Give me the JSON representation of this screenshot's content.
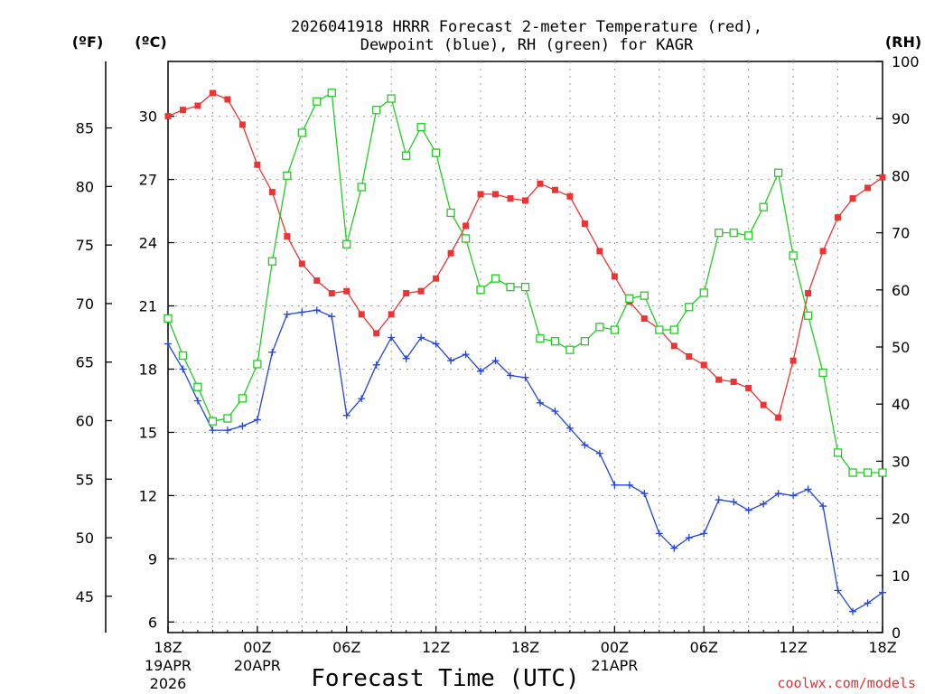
{
  "chart_data": {
    "type": "line",
    "title_line1": "2026041918 HRRR Forecast 2-meter Temperature (red),",
    "title_line2": "Dewpoint (blue), RH (green) for KAGR",
    "xlabel": "Forecast Time (UTC)",
    "watermark": "coolwx.com/models",
    "unit_labels": {
      "fahrenheit": "(ºF)",
      "celsius": "(ºC)",
      "rh": "(RH)"
    },
    "hours": [
      0,
      1,
      2,
      3,
      4,
      5,
      6,
      7,
      8,
      9,
      10,
      11,
      12,
      13,
      14,
      15,
      16,
      17,
      18,
      19,
      20,
      21,
      22,
      23,
      24,
      25,
      26,
      27,
      28,
      29,
      30,
      31,
      32,
      33,
      34,
      35,
      36,
      37,
      38,
      39,
      40,
      41,
      42,
      43,
      44,
      45,
      46,
      47,
      48
    ],
    "x_ticks": [
      {
        "hour": 0,
        "label": "18Z",
        "date1": "19APR",
        "date2": "2026"
      },
      {
        "hour": 6,
        "label": "00Z",
        "date1": "20APR",
        "date2": ""
      },
      {
        "hour": 12,
        "label": "06Z",
        "date1": "",
        "date2": ""
      },
      {
        "hour": 18,
        "label": "12Z",
        "date1": "",
        "date2": ""
      },
      {
        "hour": 24,
        "label": "18Z",
        "date1": "",
        "date2": ""
      },
      {
        "hour": 30,
        "label": "00Z",
        "date1": "21APR",
        "date2": ""
      },
      {
        "hour": 36,
        "label": "06Z",
        "date1": "",
        "date2": ""
      },
      {
        "hour": 42,
        "label": "12Z",
        "date1": "",
        "date2": ""
      },
      {
        "hour": 48,
        "label": "18Z",
        "date1": "",
        "date2": ""
      }
    ],
    "celsius_axis": {
      "range": [
        5.5,
        32.6
      ],
      "ticks": [
        6,
        9,
        12,
        15,
        18,
        21,
        24,
        27,
        30
      ]
    },
    "fahrenheit_axis": {
      "ticks": [
        45,
        50,
        55,
        60,
        65,
        70,
        75,
        80,
        85
      ]
    },
    "rh_axis": {
      "range": [
        0,
        100
      ],
      "ticks": [
        0,
        10,
        20,
        30,
        40,
        50,
        60,
        70,
        80,
        90,
        100
      ]
    },
    "series": [
      {
        "name": "Temperature",
        "units": "C",
        "color": "#ee3333",
        "marker": "filled-square",
        "values": [
          30.0,
          30.3,
          30.5,
          31.1,
          30.8,
          29.6,
          27.7,
          26.4,
          24.3,
          23.0,
          22.2,
          21.6,
          21.7,
          20.6,
          19.7,
          20.6,
          21.6,
          21.7,
          22.3,
          23.5,
          24.8,
          26.3,
          26.3,
          26.1,
          26.0,
          26.8,
          26.5,
          26.2,
          24.9,
          23.6,
          22.4,
          21.2,
          20.4,
          19.9,
          19.1,
          18.6,
          18.2,
          17.5,
          17.4,
          17.1,
          16.3,
          15.7,
          18.4,
          21.6,
          23.6,
          25.2,
          26.1,
          26.6,
          27.1
        ]
      },
      {
        "name": "Dewpoint",
        "units": "C",
        "color": "#2244dd",
        "marker": "plus",
        "values": [
          19.2,
          18.0,
          16.5,
          15.1,
          15.1,
          15.3,
          15.6,
          18.8,
          20.6,
          20.7,
          20.8,
          20.5,
          15.8,
          16.6,
          18.2,
          19.5,
          18.5,
          19.5,
          19.2,
          18.4,
          18.7,
          17.9,
          18.4,
          17.7,
          17.6,
          16.4,
          16.0,
          15.2,
          14.4,
          14.0,
          12.5,
          12.5,
          12.1,
          10.2,
          9.5,
          10.0,
          10.2,
          11.8,
          11.7,
          11.3,
          11.6,
          12.1,
          12.0,
          12.3,
          11.5,
          7.5,
          6.5,
          6.9,
          7.4
        ]
      },
      {
        "name": "RH",
        "units": "%",
        "color": "#22cc22",
        "marker": "open-square",
        "values": [
          55,
          48.5,
          43,
          37,
          37.5,
          41,
          47,
          65,
          80,
          87.5,
          93,
          94.5,
          68,
          78,
          91.5,
          93.5,
          83.5,
          88.5,
          84,
          73.5,
          69,
          60,
          62,
          60.5,
          60.5,
          51.5,
          51,
          49.5,
          51,
          53.5,
          53,
          58.5,
          59,
          53,
          53,
          57,
          59.5,
          70,
          70,
          69.5,
          74.5,
          80.5,
          66,
          55.5,
          45.5,
          31.5,
          28,
          28,
          28
        ]
      }
    ]
  }
}
